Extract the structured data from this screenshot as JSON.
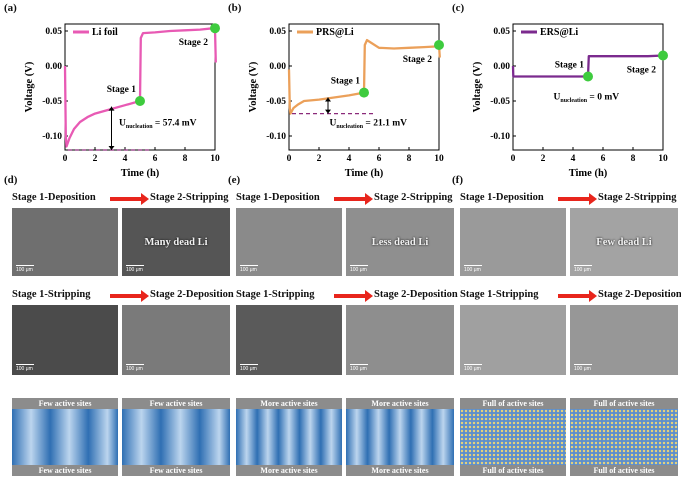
{
  "panels": {
    "a": {
      "label": "(a)"
    },
    "b": {
      "label": "(b)"
    },
    "c": {
      "label": "(c)"
    },
    "d": {
      "label": "(d)"
    },
    "e": {
      "label": "(e)"
    },
    "f": {
      "label": "(f)"
    }
  },
  "colors": {
    "li_foil": "#e85ab4",
    "prs": "#eba05a",
    "ers": "#7b2a8e",
    "marker": "#3ecb3e",
    "arrow": "#e8251c",
    "nucleation_line": "#8b2a7a"
  },
  "chart_data": [
    {
      "type": "line",
      "panel": "(a)",
      "legend": "Li foil",
      "xlabel": "Time (h)",
      "ylabel": "Voltage (V)",
      "xlim": [
        0,
        10
      ],
      "ylim": [
        -0.12,
        0.06
      ],
      "xticks": [
        "0",
        "2",
        "4",
        "6",
        "8",
        "10"
      ],
      "yticks": [
        "0.05",
        "0.00",
        "-0.05",
        "-0.10"
      ],
      "series": [
        {
          "name": "Li foil",
          "x": [
            0,
            0.05,
            0.1,
            0.3,
            0.6,
            1,
            1.5,
            2,
            3,
            4,
            5,
            5.05,
            5.2,
            6,
            7,
            8,
            9,
            9.9,
            10,
            10.05
          ],
          "y": [
            0.0,
            -0.1,
            -0.115,
            -0.103,
            -0.09,
            -0.08,
            -0.073,
            -0.068,
            -0.062,
            -0.056,
            -0.05,
            0.04,
            0.047,
            0.048,
            0.05,
            0.051,
            0.052,
            0.054,
            0.053,
            0.005
          ]
        }
      ],
      "markers": [
        {
          "label": "Stage 1",
          "x": 5,
          "y": -0.05
        },
        {
          "label": "Stage 2",
          "x": 10,
          "y": 0.054
        }
      ],
      "nucleation": {
        "text_main": "U",
        "text_sub": "nucleation",
        "text_value": "= 57.4 mV",
        "baseline": -0.12
      }
    },
    {
      "type": "line",
      "panel": "(b)",
      "legend": "PRS@Li",
      "xlabel": "Time (h)",
      "ylabel": "Voltage (V)",
      "xlim": [
        0,
        10
      ],
      "ylim": [
        -0.12,
        0.06
      ],
      "xticks": [
        "0",
        "2",
        "4",
        "6",
        "8",
        "10"
      ],
      "yticks": [
        "0.05",
        "0.00",
        "-0.05",
        "-0.10"
      ],
      "series": [
        {
          "name": "PRS@Li",
          "x": [
            0,
            0.05,
            0.1,
            0.3,
            0.6,
            1,
            2,
            3,
            4,
            5,
            5.05,
            5.2,
            6,
            7,
            8,
            9,
            9.9,
            10,
            10.05
          ],
          "y": [
            -0.005,
            -0.06,
            -0.068,
            -0.06,
            -0.055,
            -0.05,
            -0.048,
            -0.045,
            -0.042,
            -0.038,
            0.03,
            0.037,
            0.026,
            0.025,
            0.026,
            0.027,
            0.028,
            0.03,
            0.012
          ]
        }
      ],
      "markers": [
        {
          "label": "Stage 1",
          "x": 5,
          "y": -0.038
        },
        {
          "label": "Stage 2",
          "x": 10,
          "y": 0.03
        }
      ],
      "nucleation": {
        "text_main": "U",
        "text_sub": "nucleation",
        "text_value": "= 21.1 mV",
        "baseline": -0.068
      }
    },
    {
      "type": "line",
      "panel": "(c)",
      "legend": "ERS@Li",
      "xlabel": "Time (h)",
      "ylabel": "Voltage (V)",
      "xlim": [
        0,
        10
      ],
      "ylim": [
        -0.12,
        0.06
      ],
      "xticks": [
        "0",
        "2",
        "4",
        "6",
        "8",
        "10"
      ],
      "yticks": [
        "0.05",
        "0.00",
        "-0.05",
        "-0.10"
      ],
      "series": [
        {
          "name": "ERS@Li",
          "x": [
            0,
            0.02,
            0.1,
            1,
            2,
            3,
            4,
            5,
            5.05,
            6,
            7,
            8,
            9,
            10
          ],
          "y": [
            0.0,
            -0.015,
            -0.015,
            -0.015,
            -0.015,
            -0.015,
            -0.015,
            -0.015,
            0.014,
            0.014,
            0.014,
            0.014,
            0.014,
            0.015
          ]
        }
      ],
      "markers": [
        {
          "label": "Stage 1",
          "x": 5,
          "y": -0.015
        },
        {
          "label": "Stage 2",
          "x": 10,
          "y": 0.015
        }
      ],
      "nucleation": {
        "text_main": "U",
        "text_sub": "nucleation",
        "text_value": "= 0 mV",
        "baseline": null
      }
    }
  ],
  "sem_columns": [
    {
      "row1": {
        "left": "Stage 1-Deposition",
        "right": "Stage 2-Stripping"
      },
      "row2": {
        "left": "Stage 1-Stripping",
        "right": "Stage 2-Deposition"
      },
      "img_caption": "Many dead Li",
      "scale": "100 μm",
      "diag_left": {
        "top": "Few active sites",
        "bottom": "Few active sites"
      },
      "diag_right": {
        "top": "Few active sites",
        "bottom": "Few active sites"
      }
    },
    {
      "row1": {
        "left": "Stage 1-Deposition",
        "right": "Stage 2-Stripping"
      },
      "row2": {
        "left": "Stage 1-Stripping",
        "right": "Stage 2-Deposition"
      },
      "img_caption": "Less dead Li",
      "scale": "100 μm",
      "diag_left": {
        "top": "More active sites",
        "bottom": "More active sites"
      },
      "diag_right": {
        "top": "More active sites",
        "bottom": "More active sites"
      }
    },
    {
      "row1": {
        "left": "Stage 1-Deposition",
        "right": "Stage 2-Stripping"
      },
      "row2": {
        "left": "Stage 1-Stripping",
        "right": "Stage 2-Deposition"
      },
      "img_caption": "Few dead Li",
      "scale": "100 μm",
      "diag_left": {
        "top": "Full of active sites",
        "bottom": "Full of active sites"
      },
      "diag_right": {
        "top": "Full of active sites",
        "bottom": "Full of active sites"
      }
    }
  ]
}
